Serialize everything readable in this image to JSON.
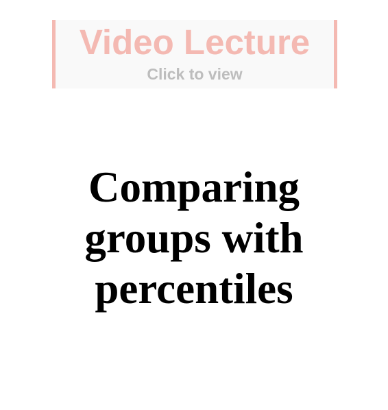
{
  "video_banner": {
    "title": "Video Lecture",
    "subtitle": "Click to view",
    "accent_color": "#f4b9b2",
    "subtitle_color": "#bdbdbd"
  },
  "lecture": {
    "title": "Comparing groups with percentiles"
  }
}
